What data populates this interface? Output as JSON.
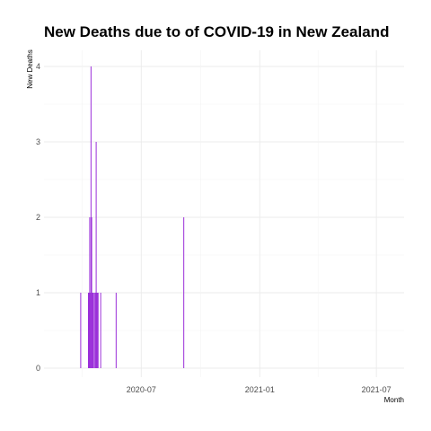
{
  "chart_data": {
    "type": "bar",
    "title": "New Deaths due to of COVID-19 in New Zealand",
    "xlabel": "Month",
    "ylabel": "New Deaths",
    "bar_color": "#9b30d9",
    "x_range": [
      "2020-02-01",
      "2021-08-13"
    ],
    "ylim": [
      0,
      4
    ],
    "y_ticks": [
      0,
      1,
      2,
      3,
      4
    ],
    "x_ticks": [
      {
        "date": "2020-07-01",
        "label": "2020-07"
      },
      {
        "date": "2021-01-01",
        "label": "2021-01"
      },
      {
        "date": "2021-07-01",
        "label": "2021-07"
      }
    ],
    "grid": true,
    "points": [
      {
        "date": "2020-03-29",
        "value": 1
      },
      {
        "date": "2020-04-10",
        "value": 1
      },
      {
        "date": "2020-04-11",
        "value": 1
      },
      {
        "date": "2020-04-12",
        "value": 2
      },
      {
        "date": "2020-04-13",
        "value": 1
      },
      {
        "date": "2020-04-14",
        "value": 4
      },
      {
        "date": "2020-04-15",
        "value": 2
      },
      {
        "date": "2020-04-16",
        "value": 1
      },
      {
        "date": "2020-04-17",
        "value": 1
      },
      {
        "date": "2020-04-18",
        "value": 1
      },
      {
        "date": "2020-04-20",
        "value": 1
      },
      {
        "date": "2020-04-21",
        "value": 1
      },
      {
        "date": "2020-04-22",
        "value": 3
      },
      {
        "date": "2020-04-23",
        "value": 1
      },
      {
        "date": "2020-04-24",
        "value": 1
      },
      {
        "date": "2020-04-25",
        "value": 1
      },
      {
        "date": "2020-04-29",
        "value": 1
      },
      {
        "date": "2020-05-23",
        "value": 1
      },
      {
        "date": "2020-09-05",
        "value": 2
      }
    ]
  }
}
